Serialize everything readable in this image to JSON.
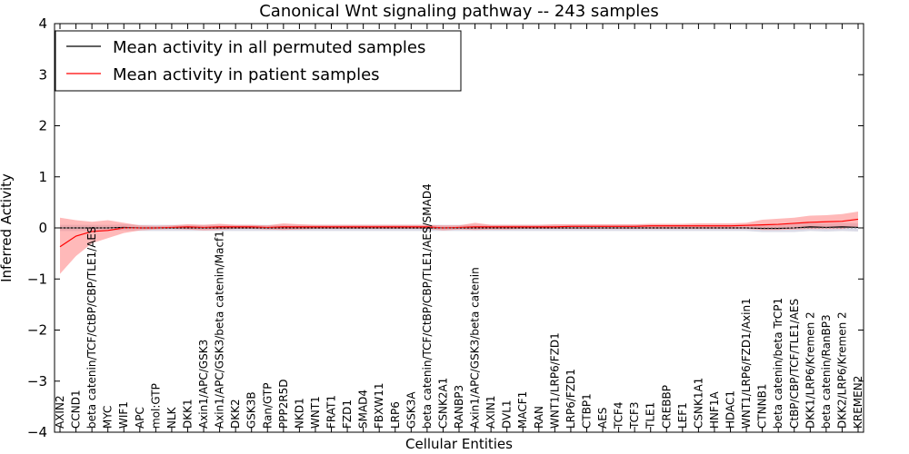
{
  "chart_data": {
    "type": "line",
    "title": "Canonical Wnt signaling pathway -- 243 samples",
    "xlabel": "Cellular Entities",
    "ylabel": "Inferred Activity",
    "ylim": [
      -4,
      4
    ],
    "yticks": [
      -4,
      -3,
      -2,
      -1,
      0,
      1,
      2,
      3,
      4
    ],
    "ytick_labels": [
      "−4",
      "−3",
      "−2",
      "−1",
      "0",
      "1",
      "2",
      "3",
      "4"
    ],
    "grid": false,
    "legend_placement": "top-left",
    "colors": {
      "permuted": "#000000",
      "patient": "#ff0000",
      "patient_band": "#ff8080",
      "permuted_band": "#b8b8d0"
    },
    "categories": [
      "AXIN2",
      "CCND1",
      "beta catenin/TCF/CtBP/CBP/TLE1/AES",
      "MYC",
      "WIF1",
      "APC",
      "mol:GTP",
      "NLK",
      "DKK1",
      "Axin1/APC/GSK3",
      "Axin1/APC/GSK3/beta catenin/Macf1",
      "DKK2",
      "GSK3B",
      "Ran/GTP",
      "PPP2R5D",
      "NKD1",
      "WNT1",
      "FRAT1",
      "FZD1",
      "SMAD4",
      "FBXW11",
      "LRP6",
      "GSK3A",
      "beta catenin/TCF/CtBP/CBP/TLE1/AES/SMAD4",
      "CSNK2A1",
      "RANBP3",
      "Axin1/APC/GSK3/beta catenin",
      "AXIN1",
      "DVL1",
      "MACF1",
      "RAN",
      "WNT1/LRP6/FZD1",
      "LRP6/FZD1",
      "CTBP1",
      "AES",
      "TCF4",
      "TCF3",
      "TLE1",
      "CREBBP",
      "LEF1",
      "CSNK1A1",
      "HNF1A",
      "HDAC1",
      "WNT1/LRP6/FZD1/Axin1",
      "CTNNB1",
      "beta catenin/beta TrCP1",
      "CtBP/CBP/TCF/TLE1/AES",
      "DKK1/LRP6/Kremen 2",
      "beta catenin/RanBP3",
      "DKK2/LRP6/Kremen 2",
      "KREMEN2"
    ],
    "series": [
      {
        "name": "Mean activity in all permuted samples",
        "values": [
          0.0,
          0.0,
          0.0,
          0.0,
          0.01,
          0.0,
          0.0,
          0.0,
          0.0,
          0.0,
          0.0,
          0.0,
          0.0,
          0.0,
          0.0,
          0.0,
          0.0,
          0.0,
          0.0,
          0.0,
          0.0,
          0.0,
          0.0,
          0.0,
          0.0,
          0.0,
          0.0,
          0.0,
          0.0,
          0.0,
          0.0,
          0.0,
          0.0,
          0.0,
          0.0,
          0.0,
          0.0,
          0.0,
          0.0,
          0.0,
          0.0,
          0.0,
          0.0,
          0.0,
          -0.01,
          -0.01,
          0.0,
          0.02,
          0.01,
          0.02,
          0.01
        ],
        "band_lower": [
          -0.06,
          -0.06,
          -0.06,
          -0.06,
          -0.05,
          -0.06,
          -0.06,
          -0.06,
          -0.06,
          -0.06,
          -0.06,
          -0.06,
          -0.06,
          -0.06,
          -0.06,
          -0.06,
          -0.06,
          -0.06,
          -0.06,
          -0.06,
          -0.06,
          -0.06,
          -0.06,
          -0.06,
          -0.06,
          -0.06,
          -0.06,
          -0.06,
          -0.06,
          -0.06,
          -0.06,
          -0.06,
          -0.06,
          -0.06,
          -0.06,
          -0.06,
          -0.06,
          -0.06,
          -0.06,
          -0.06,
          -0.06,
          -0.06,
          -0.06,
          -0.06,
          -0.08,
          -0.08,
          -0.08,
          -0.06,
          -0.07,
          -0.06,
          -0.07
        ],
        "band_upper": [
          0.06,
          0.06,
          0.06,
          0.06,
          0.07,
          0.06,
          0.06,
          0.06,
          0.06,
          0.06,
          0.06,
          0.06,
          0.06,
          0.06,
          0.06,
          0.06,
          0.06,
          0.06,
          0.06,
          0.06,
          0.06,
          0.06,
          0.06,
          0.06,
          0.06,
          0.06,
          0.06,
          0.06,
          0.06,
          0.06,
          0.06,
          0.06,
          0.06,
          0.06,
          0.06,
          0.06,
          0.06,
          0.06,
          0.06,
          0.06,
          0.06,
          0.06,
          0.06,
          0.06,
          0.06,
          0.06,
          0.08,
          0.1,
          0.09,
          0.1,
          0.09
        ]
      },
      {
        "name": "Mean activity in patient samples",
        "values": [
          -0.37,
          -0.16,
          -0.07,
          -0.05,
          0.0,
          0.0,
          0.0,
          0.01,
          0.02,
          0.01,
          0.02,
          0.02,
          0.02,
          0.01,
          0.02,
          0.02,
          0.02,
          0.02,
          0.02,
          0.02,
          0.02,
          0.02,
          0.02,
          0.02,
          0.0,
          0.01,
          0.02,
          0.02,
          0.02,
          0.02,
          0.02,
          0.02,
          0.03,
          0.03,
          0.03,
          0.03,
          0.03,
          0.04,
          0.04,
          0.04,
          0.04,
          0.04,
          0.04,
          0.05,
          0.06,
          0.07,
          0.09,
          0.11,
          0.12,
          0.13,
          0.17
        ],
        "band_lower": [
          -0.9,
          -0.55,
          -0.3,
          -0.2,
          -0.1,
          -0.05,
          -0.03,
          -0.02,
          -0.03,
          -0.05,
          -0.04,
          -0.02,
          -0.02,
          -0.03,
          -0.04,
          -0.03,
          -0.02,
          -0.02,
          -0.02,
          -0.02,
          -0.02,
          -0.02,
          -0.02,
          -0.02,
          -0.05,
          -0.03,
          -0.04,
          -0.03,
          -0.03,
          -0.02,
          -0.02,
          -0.02,
          -0.02,
          -0.02,
          -0.02,
          -0.02,
          -0.02,
          -0.02,
          -0.02,
          -0.02,
          -0.02,
          -0.02,
          -0.02,
          -0.02,
          -0.04,
          -0.04,
          -0.03,
          -0.02,
          -0.02,
          -0.02,
          0.02
        ],
        "band_upper": [
          0.2,
          0.15,
          0.12,
          0.15,
          0.1,
          0.05,
          0.04,
          0.05,
          0.07,
          0.06,
          0.08,
          0.06,
          0.06,
          0.05,
          0.09,
          0.07,
          0.06,
          0.06,
          0.06,
          0.06,
          0.06,
          0.06,
          0.06,
          0.06,
          0.05,
          0.05,
          0.1,
          0.06,
          0.06,
          0.06,
          0.06,
          0.07,
          0.07,
          0.07,
          0.07,
          0.07,
          0.07,
          0.08,
          0.08,
          0.08,
          0.09,
          0.09,
          0.09,
          0.1,
          0.16,
          0.18,
          0.2,
          0.24,
          0.25,
          0.27,
          0.32
        ]
      }
    ]
  }
}
